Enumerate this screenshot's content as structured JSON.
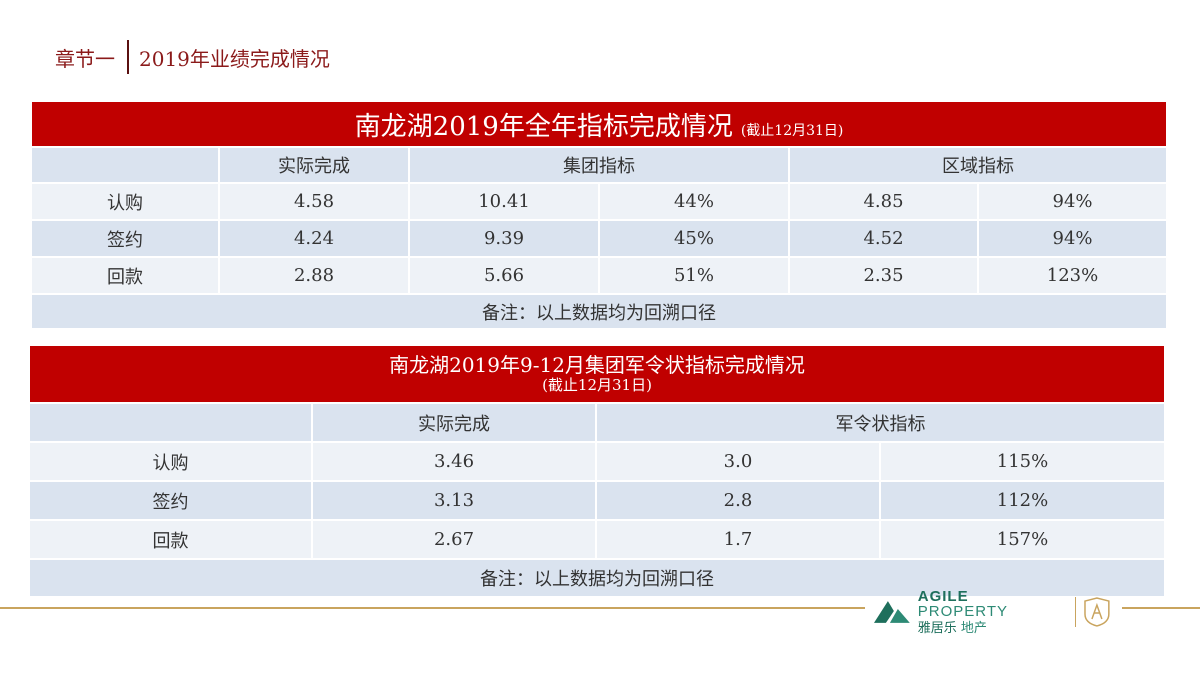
{
  "header": {
    "section": "章节一",
    "title": "2019年业绩完成情况"
  },
  "table1": {
    "title": "南龙湖2019年全年指标完成情况",
    "subtitle": "(截止12月31日)",
    "headers": {
      "actual": "实际完成",
      "group": "集团指标",
      "region": "区域指标"
    },
    "rows": [
      {
        "label": "认购",
        "actual": "4.58",
        "group": "10.41",
        "group_pct": "44%",
        "region": "4.85",
        "region_pct": "94%"
      },
      {
        "label": "签约",
        "actual": "4.24",
        "group": "9.39",
        "group_pct": "45%",
        "region": "4.52",
        "region_pct": "94%"
      },
      {
        "label": "回款",
        "actual": "2.88",
        "group": "5.66",
        "group_pct": "51%",
        "region": "2.35",
        "region_pct": "123%"
      }
    ],
    "note": "备注：以上数据均为回溯口径"
  },
  "table2": {
    "title": "南龙湖2019年9-12月集团军令状指标完成情况",
    "subtitle": "(截止12月31日)",
    "headers": {
      "actual": "实际完成",
      "target": "军令状指标"
    },
    "rows": [
      {
        "label": "认购",
        "actual": "3.46",
        "target": "3.0",
        "pct": "115%"
      },
      {
        "label": "签约",
        "actual": "3.13",
        "target": "2.8",
        "pct": "112%"
      },
      {
        "label": "回款",
        "actual": "2.67",
        "target": "1.7",
        "pct": "157%"
      }
    ],
    "note": "备注：以上数据均为回溯口径"
  },
  "logo": {
    "en_bold": "AGILE",
    "en_light": "PROPERTY",
    "cn_bold": "雅居乐",
    "cn_light": "地产",
    "color": "#1e6f5c"
  },
  "colors": {
    "accent": "#c00000",
    "header_row": "#dae3ef",
    "alt_row": "#eef2f7",
    "footer_line": "#c9a45e"
  }
}
